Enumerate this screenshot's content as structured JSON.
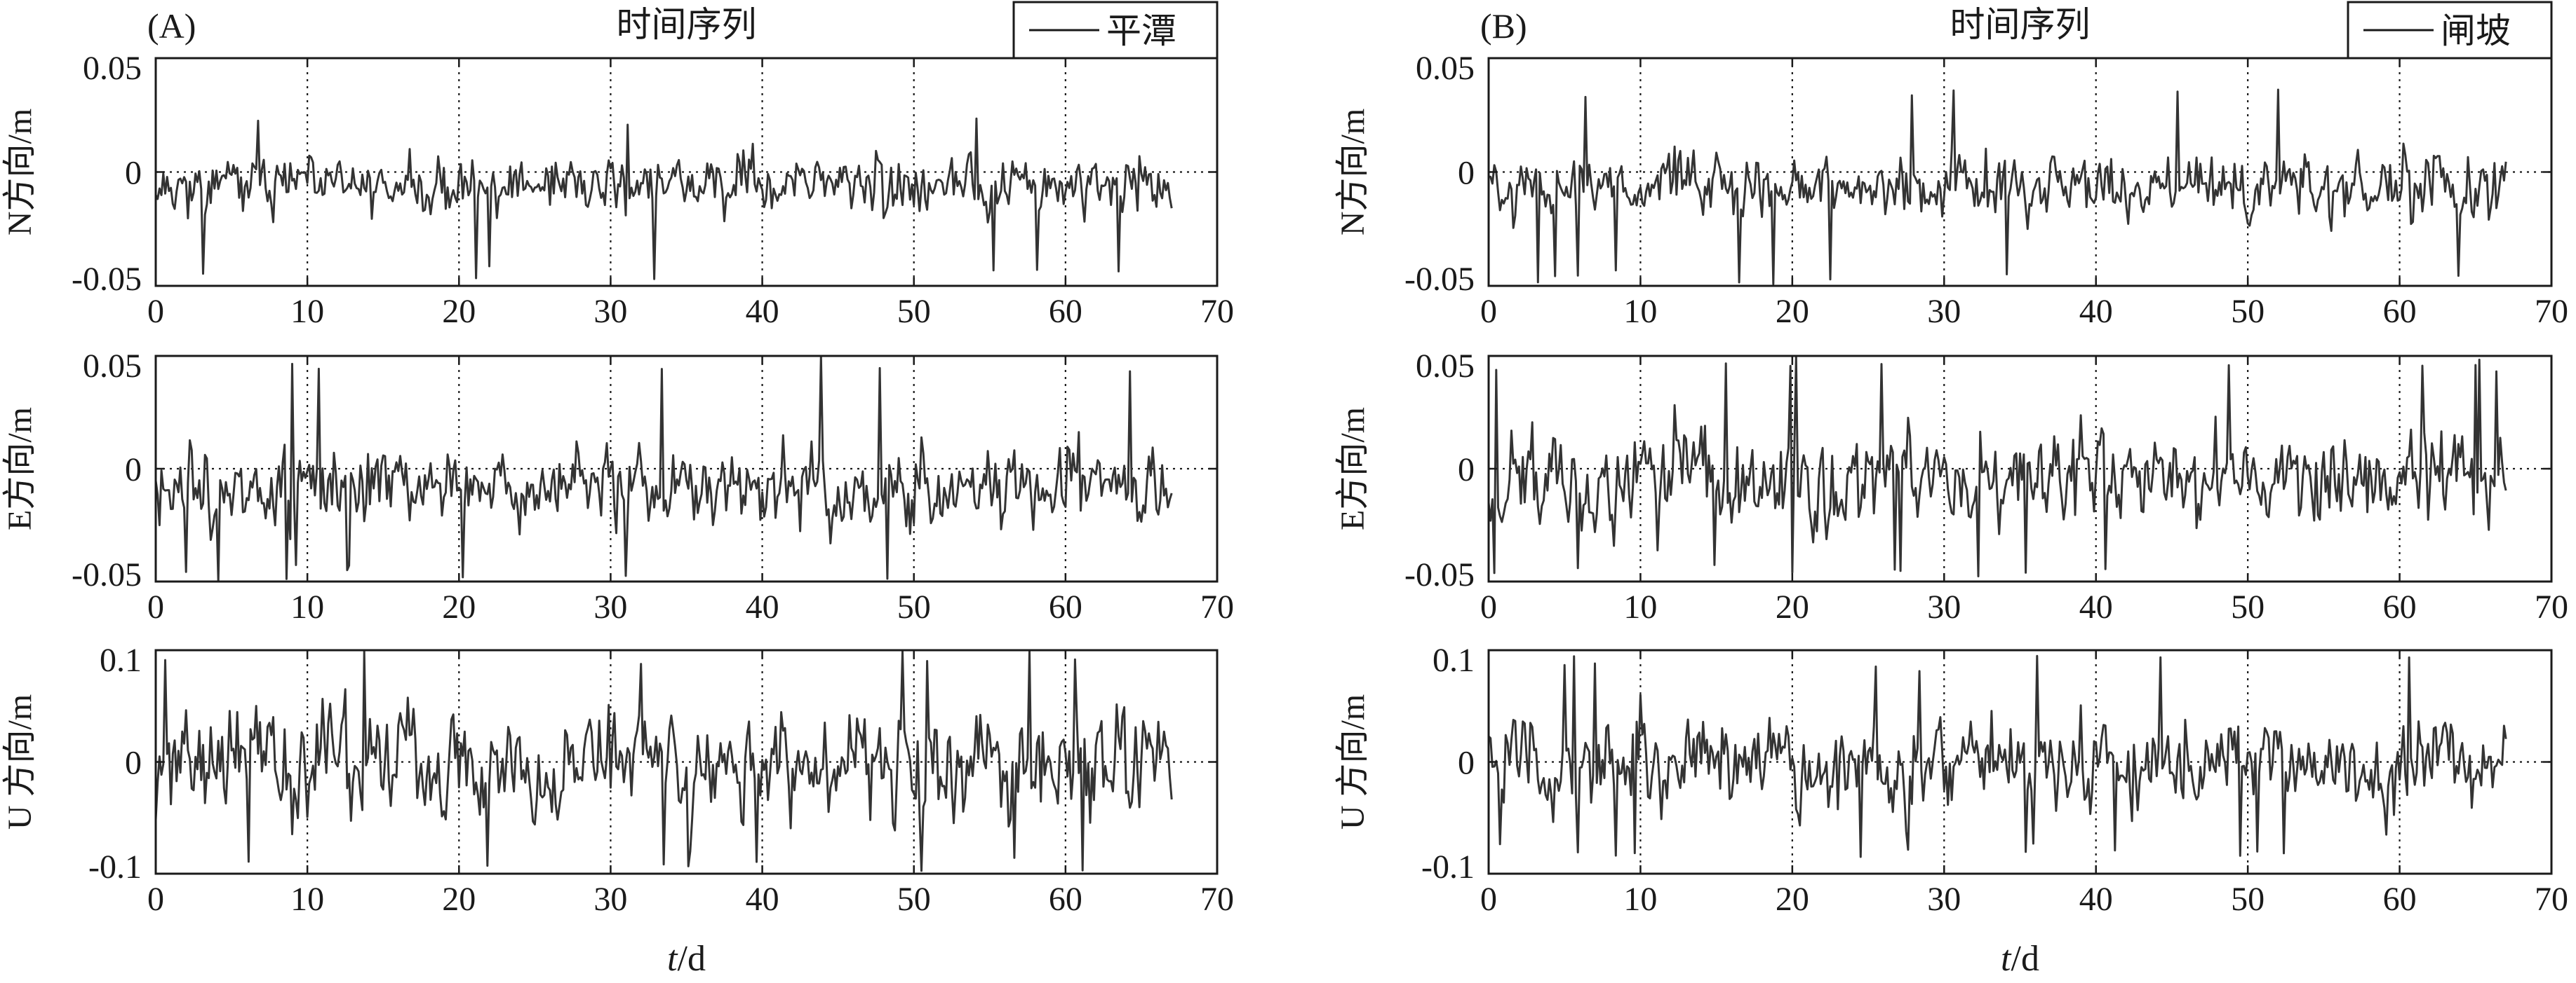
{
  "chart_data": [
    {
      "panel": "(A)",
      "title": "时间序列",
      "legend": "平潭",
      "xlabel_italic": "t",
      "xlabel_rest": "/d",
      "subplots": [
        {
          "type": "line",
          "ylabel": "N方向/m",
          "xlim": [
            0,
            70
          ],
          "ylim": [
            -0.05,
            0.05
          ],
          "xticks": [
            "0",
            "10",
            "20",
            "30",
            "40",
            "50",
            "60",
            "70"
          ],
          "yticks": [
            "-0.05",
            "0",
            "0.05"
          ],
          "grid": true,
          "series": [
            {
              "name": "平潭",
              "x_range": [
                0,
                67
              ],
              "samples_per_day": 8,
              "amplitude": 0.015,
              "mean": -0.006,
              "spike_max": 0.024,
              "spike_min": -0.048,
              "seed": 11
            }
          ]
        },
        {
          "type": "line",
          "ylabel": "E方向/m",
          "xlim": [
            0,
            70
          ],
          "ylim": [
            -0.05,
            0.05
          ],
          "xticks": [
            "0",
            "10",
            "20",
            "30",
            "40",
            "50",
            "60",
            "70"
          ],
          "yticks": [
            "-0.05",
            "0",
            "0.05"
          ],
          "grid": true,
          "series": [
            {
              "name": "平潭",
              "x_range": [
                0,
                67
              ],
              "samples_per_day": 8,
              "amplitude": 0.022,
              "mean": -0.008,
              "spike_max": 0.05,
              "spike_min": -0.05,
              "seed": 23
            }
          ]
        },
        {
          "type": "line",
          "ylabel": "U 方向/m",
          "xlim": [
            0,
            70
          ],
          "ylim": [
            -0.1,
            0.1
          ],
          "xticks": [
            "0",
            "10",
            "20",
            "30",
            "40",
            "50",
            "60",
            "70"
          ],
          "yticks": [
            "-0.1",
            "0",
            "0.1"
          ],
          "grid": true,
          "series": [
            {
              "name": "平潭",
              "x_range": [
                0,
                67
              ],
              "samples_per_day": 8,
              "amplitude": 0.06,
              "mean": 0.0,
              "spike_max": 0.1,
              "spike_min": -0.1,
              "seed": 37
            }
          ]
        }
      ]
    },
    {
      "panel": "(B)",
      "title": "时间序列",
      "legend": "闸坡",
      "xlabel_italic": "t",
      "xlabel_rest": "/d",
      "subplots": [
        {
          "type": "line",
          "ylabel": "N方向/m",
          "xlim": [
            0,
            70
          ],
          "ylim": [
            -0.05,
            0.05
          ],
          "xticks": [
            "0",
            "10",
            "20",
            "30",
            "40",
            "50",
            "60",
            "70"
          ],
          "yticks": [
            "-0.05",
            "0",
            "0.05"
          ],
          "grid": true,
          "series": [
            {
              "name": "闸坡",
              "x_range": [
                0,
                67
              ],
              "samples_per_day": 8,
              "amplitude": 0.016,
              "mean": -0.007,
              "spike_max": 0.038,
              "spike_min": -0.05,
              "seed": 51
            }
          ]
        },
        {
          "type": "line",
          "ylabel": "E方向/m",
          "xlim": [
            0,
            70
          ],
          "ylim": [
            -0.05,
            0.05
          ],
          "xticks": [
            "0",
            "10",
            "20",
            "30",
            "40",
            "50",
            "60",
            "70"
          ],
          "yticks": [
            "-0.05",
            "0",
            "0.05"
          ],
          "grid": true,
          "series": [
            {
              "name": "闸坡",
              "x_range": [
                0,
                67
              ],
              "samples_per_day": 8,
              "amplitude": 0.026,
              "mean": -0.004,
              "spike_max": 0.05,
              "spike_min": -0.05,
              "seed": 67
            }
          ]
        },
        {
          "type": "line",
          "ylabel": "U 方向/m",
          "xlim": [
            0,
            70
          ],
          "ylim": [
            -0.1,
            0.1
          ],
          "xticks": [
            "0",
            "10",
            "20",
            "30",
            "40",
            "50",
            "60",
            "70"
          ],
          "yticks": [
            "-0.1",
            "0",
            "0.1"
          ],
          "grid": true,
          "series": [
            {
              "name": "闸坡",
              "x_range": [
                0,
                67
              ],
              "samples_per_day": 8,
              "amplitude": 0.05,
              "mean": 0.0,
              "spike_max": 0.095,
              "spike_min": -0.085,
              "seed": 83
            }
          ]
        }
      ]
    }
  ]
}
